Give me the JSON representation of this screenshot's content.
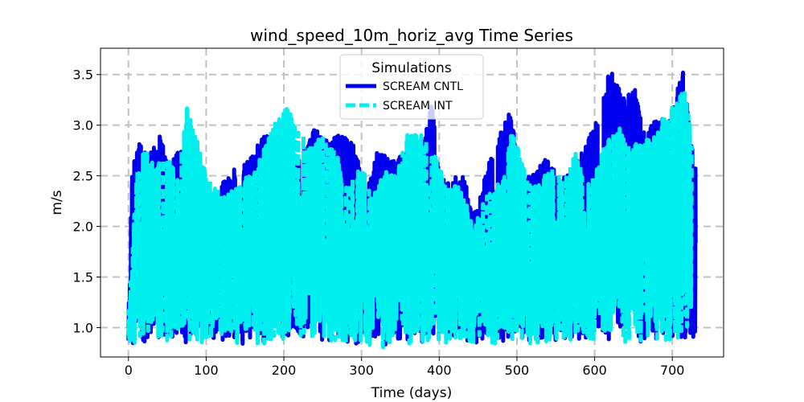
{
  "chart_data": {
    "type": "line",
    "title": "wind_speed_10m_horiz_avg Time Series",
    "xlabel": "Time (days)",
    "ylabel": "m/s",
    "xlim": [
      -36,
      766
    ],
    "ylim": [
      0.71,
      3.76
    ],
    "x_ticks": [
      0,
      100,
      200,
      300,
      400,
      500,
      600,
      700
    ],
    "y_ticks": [
      1.0,
      1.5,
      2.0,
      2.5,
      3.0,
      3.5
    ],
    "x_tick_labels": [
      "0",
      "100",
      "200",
      "300",
      "400",
      "500",
      "600",
      "700"
    ],
    "y_tick_labels": [
      "1.0",
      "1.5",
      "2.0",
      "2.5",
      "3.0",
      "3.5"
    ],
    "grid": true,
    "legend": {
      "title": "Simulations",
      "position": "upper-center"
    },
    "series": [
      {
        "name": "SCREAM CNTL",
        "color": "#0000ee",
        "style": "solid",
        "x": [
          0,
          5,
          15,
          25,
          40,
          55,
          70,
          80,
          90,
          110,
          130,
          145,
          160,
          175,
          195,
          210,
          225,
          240,
          255,
          270,
          290,
          305,
          320,
          340,
          360,
          375,
          390,
          400,
          415,
          430,
          445,
          460,
          475,
          490,
          505,
          520,
          540,
          555,
          575,
          590,
          605,
          620,
          625,
          640,
          650,
          665,
          680,
          695,
          705,
          715,
          720,
          730
        ],
        "values": [
          1.2,
          2.6,
          2.85,
          2.7,
          2.9,
          2.6,
          2.9,
          2.1,
          2.6,
          2.3,
          2.55,
          2.6,
          2.7,
          2.95,
          2.9,
          2.6,
          2.8,
          2.97,
          2.9,
          2.9,
          2.85,
          2.3,
          2.75,
          2.65,
          2.75,
          2.65,
          3.28,
          2.5,
          2.45,
          2.55,
          2.1,
          2.55,
          2.85,
          3.15,
          2.6,
          2.5,
          2.7,
          2.45,
          2.6,
          2.85,
          3.1,
          3.57,
          3.45,
          3.25,
          3.42,
          2.9,
          3.1,
          3.05,
          3.3,
          3.65,
          3.1,
          2.6
        ],
        "min_envelope": 0.82
      },
      {
        "name": "SCREAM INT",
        "color": "#00f0f0",
        "style": "dashed",
        "x": [
          0,
          10,
          20,
          35,
          50,
          65,
          75,
          85,
          100,
          120,
          140,
          160,
          175,
          195,
          200,
          215,
          230,
          250,
          265,
          280,
          300,
          315,
          330,
          345,
          360,
          380,
          395,
          410,
          425,
          445,
          460,
          480,
          495,
          510,
          525,
          545,
          560,
          575,
          590,
          600,
          615,
          630,
          645,
          660,
          675,
          690,
          705,
          715,
          725
        ],
        "values": [
          1.1,
          2.5,
          2.8,
          2.6,
          2.7,
          2.55,
          3.18,
          2.95,
          2.5,
          2.3,
          2.4,
          2.55,
          2.8,
          3.15,
          3.18,
          3.1,
          2.8,
          2.9,
          2.8,
          2.4,
          2.6,
          2.3,
          2.55,
          2.5,
          2.95,
          2.9,
          2.7,
          2.4,
          2.45,
          2.0,
          2.3,
          2.45,
          3.0,
          2.55,
          2.4,
          2.6,
          2.45,
          2.75,
          2.45,
          2.5,
          2.85,
          3.0,
          2.8,
          2.85,
          2.9,
          3.1,
          3.25,
          3.4,
          2.9
        ],
        "min_envelope": 0.8
      }
    ]
  }
}
